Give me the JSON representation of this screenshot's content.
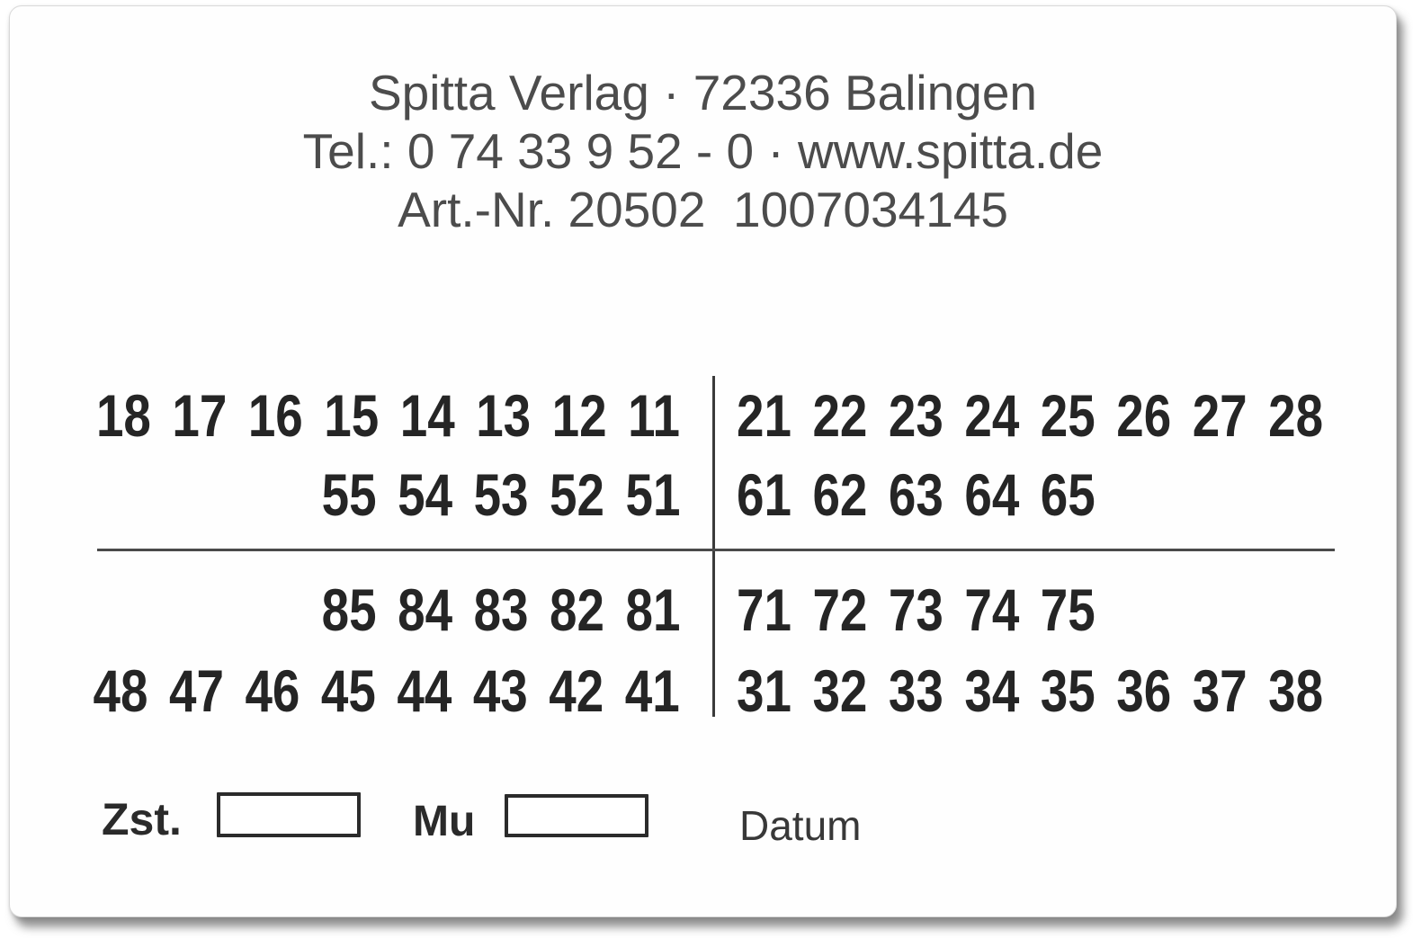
{
  "card": {
    "header": {
      "line1": "Spitta Verlag · 72336 Balingen",
      "line2": "Tel.: 0 74 33 9 52 - 0 · www.spitta.de",
      "line3": "Art.-Nr. 20502  1007034145",
      "publisher": "Spitta Verlag",
      "postal_code_city": "72336 Balingen",
      "phone": "0 74 33 9 52 - 0",
      "website": "www.spitta.de",
      "article_number": "20502",
      "serial_number": "1007034145"
    },
    "tooth_chart": {
      "notation": "FDI",
      "upper_right_permanent": [
        "18",
        "17",
        "16",
        "15",
        "14",
        "13",
        "12",
        "11"
      ],
      "upper_left_permanent": [
        "21",
        "22",
        "23",
        "24",
        "25",
        "26",
        "27",
        "28"
      ],
      "upper_right_deciduous": [
        "55",
        "54",
        "53",
        "52",
        "51"
      ],
      "upper_left_deciduous": [
        "61",
        "62",
        "63",
        "64",
        "65"
      ],
      "lower_right_deciduous": [
        "85",
        "84",
        "83",
        "82",
        "81"
      ],
      "lower_left_deciduous": [
        "71",
        "72",
        "73",
        "74",
        "75"
      ],
      "lower_right_permanent": [
        "48",
        "47",
        "46",
        "45",
        "44",
        "43",
        "42",
        "41"
      ],
      "lower_left_permanent": [
        "31",
        "32",
        "33",
        "34",
        "35",
        "36",
        "37",
        "38"
      ]
    },
    "footer": {
      "zst_label": "Zst.",
      "mu_label": "Mu",
      "datum_label": "Datum",
      "zst_value": "",
      "mu_value": ""
    },
    "colors": {
      "ink": "#252525",
      "header_ink": "#4c4c4c",
      "card_background": "#fefefe"
    }
  }
}
